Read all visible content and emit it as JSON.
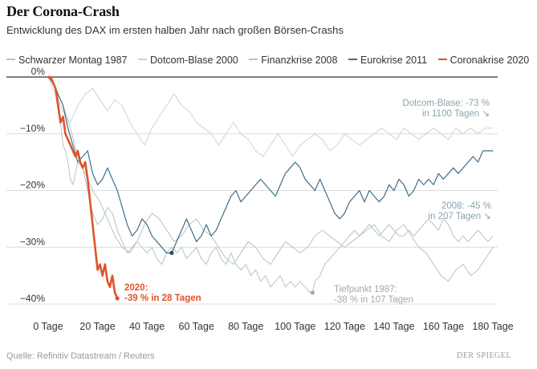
{
  "header": {
    "title": "Der Corona-Crash",
    "subtitle": "Entwicklung des DAX im ersten halben Jahr nach großen Börsen-Crashs"
  },
  "footer": {
    "source": "Quelle: Refinitiv Datastream / Reuters",
    "brand": "DER SPIEGEL"
  },
  "chart_data": {
    "type": "line",
    "title": "Der Corona-Crash",
    "xlabel": "",
    "ylabel": "",
    "xlim": [
      0,
      180
    ],
    "ylim": [
      -40,
      0
    ],
    "x_ticks": [
      0,
      20,
      40,
      60,
      80,
      100,
      120,
      140,
      160,
      180
    ],
    "x_tick_labels": [
      "0 Tage",
      "20 Tage",
      "40 Tage",
      "60 Tage",
      "80 Tage",
      "100 Tage",
      "120 Tage",
      "140 Tage",
      "160 Tage",
      "180 Tage"
    ],
    "y_ticks": [
      0,
      -10,
      -20,
      -30,
      -40
    ],
    "y_tick_labels": [
      "0%",
      "−10%",
      "−20%",
      "−30%",
      "−40%"
    ],
    "legend_position": "top",
    "series": [
      {
        "name": "Schwarzer Montag 1987",
        "color": "#b5c3c9",
        "width": 1,
        "x": [
          0,
          2,
          4,
          5,
          6,
          7,
          8,
          9,
          10,
          11,
          12,
          14,
          16,
          18,
          20,
          22,
          24,
          26,
          28,
          30,
          32,
          34,
          36,
          38,
          40,
          42,
          44,
          46,
          48,
          50,
          52,
          54,
          56,
          58,
          60,
          62,
          64,
          66,
          68,
          70,
          72,
          74,
          76,
          78,
          80,
          82,
          84,
          86,
          88,
          90,
          92,
          94,
          96,
          98,
          100,
          102,
          104,
          106,
          107,
          108,
          110,
          112,
          114,
          116,
          118,
          120,
          122,
          124,
          126,
          128,
          130,
          132,
          134,
          136,
          138,
          140,
          142,
          144,
          146,
          148,
          150,
          152,
          154,
          156,
          158,
          160,
          162,
          164,
          166,
          168,
          170,
          172,
          174,
          176,
          178,
          180
        ],
        "y": [
          0,
          -1,
          -3,
          -8,
          -12,
          -13,
          -15,
          -18,
          -19,
          -17,
          -15,
          -16,
          -20,
          -24,
          -26,
          -25,
          -23,
          -24,
          -27,
          -29,
          -31,
          -30,
          -29,
          -30,
          -31,
          -30,
          -32,
          -33,
          -31,
          -30,
          -31,
          -30,
          -32,
          -31,
          -30,
          -32,
          -33,
          -31,
          -30,
          -32,
          -33,
          -31,
          -33,
          -34,
          -33,
          -35,
          -34,
          -36,
          -35,
          -37,
          -36,
          -35,
          -37,
          -36,
          -37,
          -36,
          -37,
          -38,
          -38,
          -36,
          -35,
          -33,
          -32,
          -31,
          -30,
          -29,
          -28,
          -27,
          -28,
          -27,
          -26,
          -27,
          -28,
          -27,
          -26,
          -27,
          -28,
          -28,
          -27,
          -28,
          -27,
          -26,
          -25,
          -26,
          -27,
          -25,
          -26,
          -28,
          -29,
          -28,
          -29,
          -28,
          -27,
          -28,
          -29,
          -28
        ]
      },
      {
        "name": "Dotcom-Blase 2000",
        "color": "#c9d5da",
        "width": 1,
        "x": [
          0,
          3,
          6,
          9,
          12,
          15,
          18,
          21,
          24,
          27,
          30,
          33,
          36,
          39,
          42,
          45,
          48,
          51,
          54,
          57,
          60,
          63,
          66,
          69,
          72,
          75,
          78,
          81,
          84,
          87,
          90,
          93,
          96,
          99,
          102,
          105,
          108,
          111,
          114,
          117,
          120,
          123,
          126,
          129,
          132,
          135,
          138,
          141,
          144,
          147,
          150,
          153,
          156,
          159,
          162,
          165,
          168,
          171,
          174,
          177,
          180
        ],
        "y": [
          0,
          -3,
          -6,
          -8,
          -5,
          -3,
          -2,
          -4,
          -6,
          -4,
          -5,
          -8,
          -10,
          -12,
          -9,
          -7,
          -5,
          -3,
          -5,
          -6,
          -8,
          -9,
          -10,
          -12,
          -10,
          -8,
          -10,
          -11,
          -13,
          -14,
          -12,
          -10,
          -12,
          -14,
          -12,
          -11,
          -10,
          -11,
          -13,
          -12,
          -10,
          -11,
          -12,
          -11,
          -10,
          -9,
          -10,
          -11,
          -9,
          -10,
          -11,
          -10,
          -9,
          -10,
          -11,
          -9,
          -10,
          -9,
          -10,
          -9,
          -9
        ]
      },
      {
        "name": "Finanzkrise 2008",
        "color": "#b5c3c9",
        "width": 1,
        "x": [
          0,
          3,
          6,
          9,
          12,
          15,
          18,
          21,
          24,
          27,
          30,
          33,
          36,
          39,
          42,
          45,
          48,
          51,
          54,
          57,
          60,
          63,
          66,
          69,
          72,
          75,
          78,
          81,
          84,
          87,
          90,
          93,
          96,
          99,
          102,
          105,
          108,
          111,
          114,
          117,
          120,
          123,
          126,
          129,
          132,
          135,
          138,
          141,
          144,
          147,
          150,
          153,
          156,
          159,
          162,
          165,
          168,
          171,
          174,
          177,
          180
        ],
        "y": [
          0,
          -2,
          -5,
          -9,
          -14,
          -17,
          -20,
          -22,
          -25,
          -28,
          -30,
          -31,
          -29,
          -26,
          -24,
          -25,
          -27,
          -29,
          -28,
          -26,
          -25,
          -27,
          -28,
          -30,
          -32,
          -33,
          -31,
          -29,
          -30,
          -32,
          -33,
          -31,
          -29,
          -30,
          -31,
          -30,
          -28,
          -27,
          -28,
          -29,
          -30,
          -29,
          -28,
          -27,
          -26,
          -28,
          -29,
          -27,
          -26,
          -28,
          -30,
          -31,
          -33,
          -35,
          -36,
          -34,
          -33,
          -35,
          -34,
          -32,
          -30
        ]
      },
      {
        "name": "Eurokrise 2011",
        "color": "#3d6f86",
        "width": 1.2,
        "x": [
          0,
          2,
          4,
          6,
          8,
          10,
          12,
          14,
          16,
          18,
          20,
          22,
          24,
          26,
          28,
          30,
          32,
          34,
          36,
          38,
          40,
          42,
          44,
          46,
          48,
          50,
          52,
          54,
          56,
          58,
          60,
          62,
          64,
          66,
          68,
          70,
          72,
          74,
          76,
          78,
          80,
          82,
          84,
          86,
          88,
          90,
          92,
          94,
          96,
          98,
          100,
          102,
          104,
          106,
          108,
          110,
          112,
          114,
          116,
          118,
          120,
          122,
          124,
          126,
          128,
          130,
          132,
          134,
          136,
          138,
          140,
          142,
          144,
          146,
          148,
          150,
          152,
          154,
          156,
          158,
          160,
          162,
          164,
          166,
          168,
          170,
          172,
          174,
          176,
          178,
          180
        ],
        "y": [
          0,
          -1,
          -3,
          -5,
          -9,
          -12,
          -15,
          -14,
          -13,
          -17,
          -19,
          -18,
          -16,
          -18,
          -20,
          -23,
          -26,
          -28,
          -27,
          -25,
          -26,
          -28,
          -29,
          -30,
          -31,
          -31,
          -29,
          -27,
          -25,
          -27,
          -29,
          -28,
          -26,
          -28,
          -27,
          -25,
          -23,
          -21,
          -20,
          -22,
          -21,
          -20,
          -19,
          -18,
          -19,
          -20,
          -21,
          -19,
          -17,
          -16,
          -15,
          -16,
          -18,
          -19,
          -20,
          -18,
          -20,
          -22,
          -24,
          -25,
          -24,
          -22,
          -21,
          -20,
          -22,
          -20,
          -21,
          -22,
          -21,
          -19,
          -20,
          -18,
          -19,
          -21,
          -20,
          -18,
          -19,
          -18,
          -19,
          -17,
          -18,
          -17,
          -16,
          -17,
          -16,
          -15,
          -14,
          -15,
          -13,
          -13,
          -13
        ]
      },
      {
        "name": "Coronakrise 2020",
        "color": "#e2532a",
        "width": 2.6,
        "x": [
          0,
          1,
          2,
          3,
          4,
          5,
          6,
          7,
          8,
          9,
          10,
          11,
          12,
          13,
          14,
          15,
          16,
          17,
          18,
          19,
          20,
          21,
          22,
          23,
          24,
          25,
          26,
          27,
          28
        ],
        "y": [
          0,
          0,
          -1,
          -2,
          -5,
          -8,
          -7,
          -10,
          -11,
          -12,
          -13,
          -14,
          -13,
          -15,
          -16,
          -15,
          -18,
          -22,
          -26,
          -30,
          -34,
          -33,
          -35,
          -33,
          -36,
          -37,
          -35,
          -38,
          -39
        ]
      }
    ],
    "annotations": [
      {
        "id": "dotcom",
        "lines": [
          "Dotcom-Blase: -73 %",
          "in 1100 Tagen ↘"
        ],
        "color": "#8aa3ad",
        "anchor": "end"
      },
      {
        "id": "finanz",
        "lines": [
          "2008: -45 %",
          "in 207 Tagen ↘"
        ],
        "color": "#8aa3ad",
        "anchor": "end"
      },
      {
        "id": "corona",
        "lines": [
          "2020:",
          "-39 % in 28 Tagen"
        ],
        "color": "#e2532a",
        "anchor": "start"
      },
      {
        "id": "tiefpunkt",
        "lines": [
          "Tiefpunkt 1987:",
          "-38 % in 107 Tagen"
        ],
        "color": "#a7a7a7",
        "anchor": "start"
      }
    ],
    "markers": [
      {
        "series": "Eurokrise 2011",
        "x": 50,
        "y": -31,
        "color": "#2c4a5a"
      },
      {
        "series": "Schwarzer Montag 1987",
        "x": 107,
        "y": -38,
        "color": "#a7a7a7"
      },
      {
        "series": "Coronakrise 2020",
        "x": 28,
        "y": -39,
        "color": "#e2532a"
      }
    ]
  }
}
